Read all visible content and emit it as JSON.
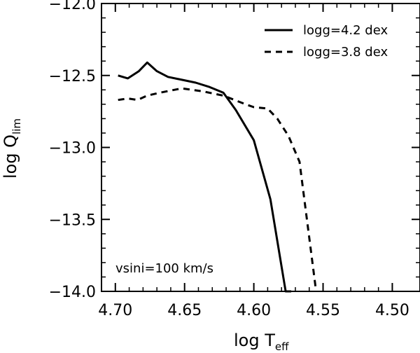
{
  "chart_data": {
    "type": "line",
    "xlabel_main": "log T",
    "xlabel_sub": "eff",
    "ylabel_main": "log Q",
    "ylabel_sub": "lim",
    "xlim": [
      4.71,
      4.48
    ],
    "ylim": [
      -14.0,
      -12.0
    ],
    "xticks": [
      4.7,
      4.65,
      4.6,
      4.55,
      4.5
    ],
    "xtick_labels": [
      "4.70",
      "4.65",
      "4.60",
      "4.55",
      "4.50"
    ],
    "yticks": [
      -12.0,
      -12.5,
      -13.0,
      -13.5,
      -14.0
    ],
    "ytick_labels": [
      "−12.0",
      "−12.5",
      "−13.0",
      "−13.5",
      "−14.0"
    ],
    "grid": false,
    "legend_position": "top-right",
    "annotation": "vsini=100 km/s",
    "series": [
      {
        "name": "logg=4.2 dex",
        "style": "solid",
        "color": "#000000",
        "x": [
          4.698,
          4.691,
          4.683,
          4.677,
          4.67,
          4.662,
          4.652,
          4.642,
          4.632,
          4.622,
          4.613,
          4.6,
          4.588,
          4.577,
          4.573
        ],
        "y": [
          -12.5,
          -12.52,
          -12.47,
          -12.41,
          -12.47,
          -12.51,
          -12.53,
          -12.55,
          -12.58,
          -12.62,
          -12.74,
          -12.95,
          -13.36,
          -14.0,
          -14.0
        ]
      },
      {
        "name": "logg=3.8 dex",
        "style": "dashed",
        "color": "#000000",
        "x": [
          4.698,
          4.691,
          4.684,
          4.677,
          4.668,
          4.652,
          4.637,
          4.622,
          4.606,
          4.6,
          4.59,
          4.583,
          4.575,
          4.567,
          4.559,
          4.555
        ],
        "y": [
          -12.67,
          -12.66,
          -12.67,
          -12.64,
          -12.62,
          -12.59,
          -12.61,
          -12.64,
          -12.7,
          -12.72,
          -12.73,
          -12.8,
          -12.92,
          -13.1,
          -13.7,
          -14.0
        ]
      }
    ]
  }
}
